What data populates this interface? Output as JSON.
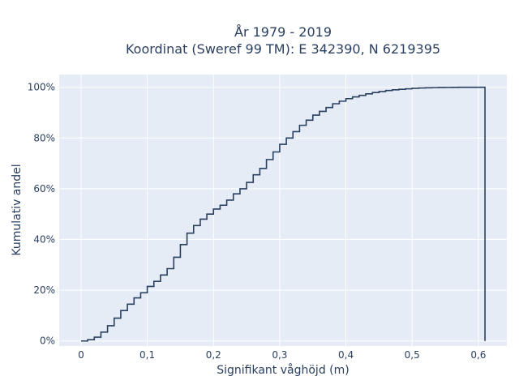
{
  "chart_data": {
    "type": "line",
    "subtype": "cumulative-step",
    "title_lines": [
      "År 1979 - 2019",
      "Koordinat (Sweref 99 TM): E 342390, N 6219395"
    ],
    "xlabel": "Signifikant våghöjd (m)",
    "ylabel": "Kumulativ andel",
    "xlim": [
      -0.033,
      0.643
    ],
    "ylim": [
      -0.02,
      1.05
    ],
    "x_ticks": [
      0,
      0.1,
      0.2,
      0.3,
      0.4,
      0.5,
      0.6
    ],
    "x_tick_labels": [
      "0",
      "0,1",
      "0,2",
      "0,3",
      "0,4",
      "0,5",
      "0,6"
    ],
    "y_ticks": [
      0,
      0.2,
      0.4,
      0.6,
      0.8,
      1.0
    ],
    "y_tick_labels": [
      "0%",
      "20%",
      "40%",
      "60%",
      "80%",
      "100%"
    ],
    "grid": true,
    "legend": "none",
    "colors": {
      "plot_bg": "#e5ecf6",
      "grid": "#ffffff",
      "line": "#2a3f5f",
      "text": "#2a3f5f"
    },
    "series": [
      {
        "x": [
          0,
          0.01,
          0.02,
          0.03,
          0.04,
          0.05,
          0.06,
          0.07,
          0.08,
          0.09,
          0.1,
          0.11,
          0.12,
          0.13,
          0.14,
          0.15,
          0.16,
          0.17,
          0.18,
          0.19,
          0.2,
          0.21,
          0.22,
          0.23,
          0.24,
          0.25,
          0.26,
          0.27,
          0.28,
          0.29,
          0.3,
          0.31,
          0.32,
          0.33,
          0.34,
          0.35,
          0.36,
          0.37,
          0.38,
          0.39,
          0.4,
          0.41,
          0.42,
          0.43,
          0.44,
          0.45,
          0.46,
          0.47,
          0.48,
          0.49,
          0.5,
          0.51,
          0.52,
          0.53,
          0.54,
          0.55,
          0.56,
          0.57,
          0.58,
          0.59,
          0.6,
          0.61
        ],
        "y": [
          0.0,
          0.005,
          0.015,
          0.035,
          0.06,
          0.09,
          0.12,
          0.145,
          0.17,
          0.19,
          0.215,
          0.235,
          0.26,
          0.285,
          0.33,
          0.38,
          0.425,
          0.455,
          0.48,
          0.5,
          0.52,
          0.535,
          0.555,
          0.58,
          0.6,
          0.625,
          0.655,
          0.68,
          0.715,
          0.745,
          0.775,
          0.8,
          0.825,
          0.85,
          0.87,
          0.89,
          0.905,
          0.92,
          0.935,
          0.945,
          0.955,
          0.962,
          0.968,
          0.974,
          0.979,
          0.983,
          0.987,
          0.99,
          0.992,
          0.994,
          0.996,
          0.997,
          0.998,
          0.9985,
          0.999,
          0.9993,
          0.9996,
          0.9998,
          0.9999,
          1.0,
          1.0,
          0.0
        ]
      }
    ]
  }
}
